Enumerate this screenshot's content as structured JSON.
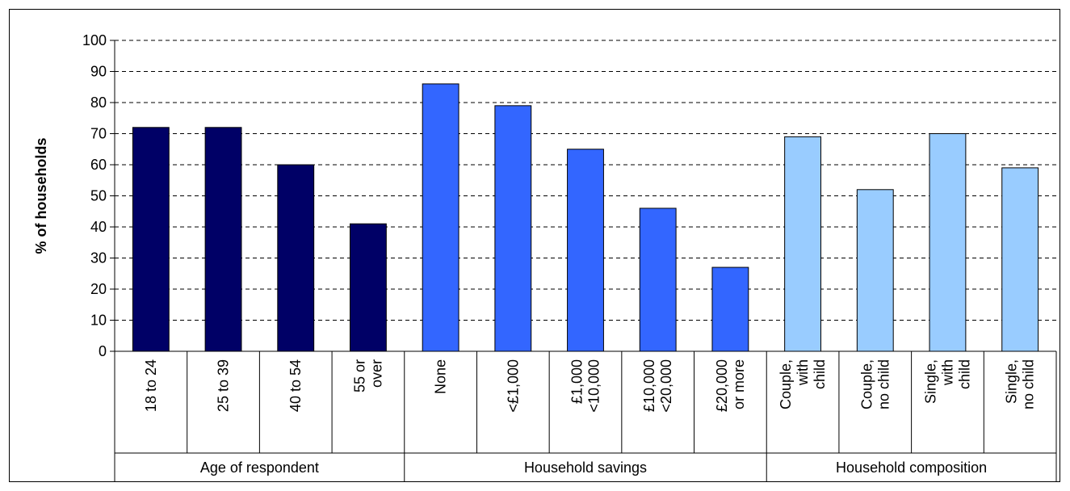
{
  "chart_data": {
    "type": "bar",
    "ylabel": "% of households",
    "xlabel": "",
    "ylim": [
      0,
      100
    ],
    "yticks": [
      0,
      10,
      20,
      30,
      40,
      50,
      60,
      70,
      80,
      90,
      100
    ],
    "grid": "horizontal-dashed",
    "legend": "none",
    "groups": [
      {
        "name": "Age of respondent",
        "color": "#000066",
        "categories": [
          [
            "18 to 24"
          ],
          [
            "25 to 39"
          ],
          [
            "40 to 54"
          ],
          [
            "55 or",
            "over"
          ]
        ],
        "values": [
          72,
          72,
          60,
          41
        ]
      },
      {
        "name": "Household savings",
        "color": "#3366FF",
        "categories": [
          [
            "None"
          ],
          [
            "<£1,000"
          ],
          [
            "£1,000",
            "<10,000"
          ],
          [
            "£10,000",
            "<20,000"
          ],
          [
            "£20,000",
            "or more"
          ]
        ],
        "values": [
          86,
          79,
          65,
          46,
          27
        ]
      },
      {
        "name": "Household composition",
        "color": "#99CCFF",
        "categories": [
          [
            "Couple,",
            "with",
            "child"
          ],
          [
            "Couple,",
            "no child"
          ],
          [
            "Single,",
            "with",
            "child"
          ],
          [
            "Single,",
            "no child"
          ]
        ],
        "values": [
          69,
          52,
          70,
          59
        ]
      }
    ]
  }
}
